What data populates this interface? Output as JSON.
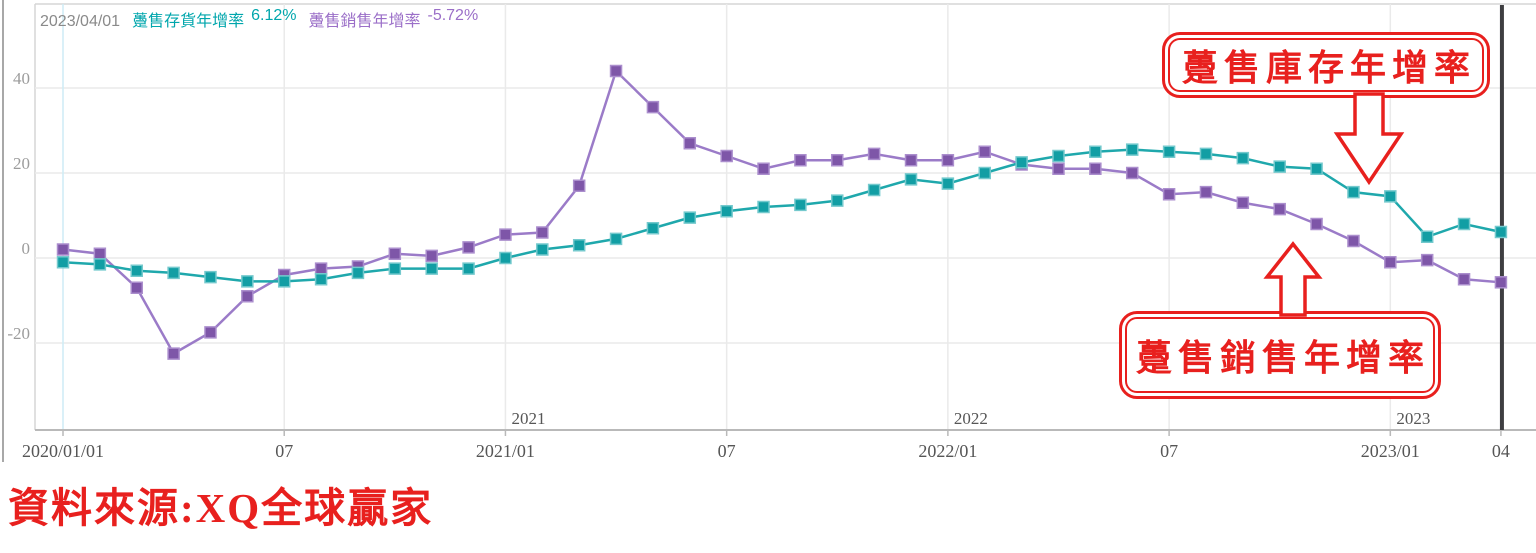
{
  "header": {
    "date": "2023/04/01",
    "inventory_label": "躉售存貨年增率",
    "inventory_value": "6.12%",
    "sales_label": "躉售銷售年增率",
    "sales_value": "-5.72%"
  },
  "annotations": {
    "inventory_box_label": "躉售庫存年增率",
    "sales_box_label": "躉售銷售年增率"
  },
  "source_text": "資料來源:XQ全球贏家",
  "colors": {
    "inventory_marker": "#129ea4",
    "inventory_marker_edge": "#74c9cd",
    "inventory_line": "#1fa8ac",
    "sales_marker": "#7e56a8",
    "sales_marker_edge": "#ab8ecd",
    "sales_line": "#9b7bc8",
    "annotation_red": "#e8201e",
    "grid": "#eaeaea",
    "first_grid": "#cdecf5",
    "axis": "#b9b9b9",
    "border": "#d6d6d6",
    "cursor": "#3e3e41",
    "y_label": "#9c9c9c",
    "x_label": "#565656",
    "header_date": "#8a8a8a",
    "header_inventory": "#00a6ac",
    "header_sales": "#9b6fc8"
  },
  "chart_data": {
    "type": "line",
    "title": "",
    "x_unit": "month",
    "months": [
      "2020/01",
      "2020/02",
      "2020/03",
      "2020/04",
      "2020/05",
      "2020/06",
      "2020/07",
      "2020/08",
      "2020/09",
      "2020/10",
      "2020/11",
      "2020/12",
      "2021/01",
      "2021/02",
      "2021/03",
      "2021/04",
      "2021/05",
      "2021/06",
      "2021/07",
      "2021/08",
      "2021/09",
      "2021/10",
      "2021/11",
      "2021/12",
      "2022/01",
      "2022/02",
      "2022/03",
      "2022/04",
      "2022/05",
      "2022/06",
      "2022/07",
      "2022/08",
      "2022/09",
      "2022/10",
      "2022/11",
      "2022/12",
      "2023/01",
      "2023/02",
      "2023/03",
      "2023/04"
    ],
    "series": [
      {
        "name": "躉售存貨年增率",
        "values": [
          -1,
          -1.5,
          -3,
          -3.5,
          -4.5,
          -5.5,
          -5.5,
          -5,
          -3.5,
          -2.5,
          -2.5,
          -2.5,
          0,
          2,
          3,
          4.5,
          7,
          9.5,
          11,
          12,
          12.5,
          13.5,
          16,
          18.5,
          17.5,
          20,
          22.5,
          24,
          25,
          25.5,
          25,
          24.5,
          23.5,
          21.5,
          21,
          15.5,
          14.5,
          5,
          8,
          6.12
        ]
      },
      {
        "name": "躉售銷售年增率",
        "values": [
          2,
          1,
          -7,
          -22.5,
          -17.5,
          -9,
          -4,
          -2.5,
          -2,
          1,
          0.5,
          2.5,
          5.5,
          6,
          17,
          44,
          35.5,
          27,
          24,
          21,
          23,
          23,
          24.5,
          23,
          23,
          25,
          22,
          21,
          21,
          20,
          15,
          15.5,
          13,
          11.5,
          8,
          4,
          -1,
          -0.5,
          -5,
          -5.72
        ]
      }
    ],
    "y_ticks": [
      40,
      20,
      0,
      -20
    ],
    "ylim": [
      -28,
      59
    ],
    "grid": true,
    "x_ticks": [
      {
        "label": "2020/01/01",
        "index": 0
      },
      {
        "label": "07",
        "index": 6
      },
      {
        "label": "2021/01",
        "index": 12
      },
      {
        "label": "07",
        "index": 18
      },
      {
        "label": "2022/01",
        "index": 24
      },
      {
        "label": "07",
        "index": 30
      },
      {
        "label": "2023/01",
        "index": 36
      },
      {
        "label": "04",
        "index": 39
      }
    ],
    "year_labels": [
      {
        "label": "2021",
        "index": 12
      },
      {
        "label": "2022",
        "index": 24
      },
      {
        "label": "2023",
        "index": 36
      }
    ],
    "grid_indices": [
      0,
      6,
      12,
      18,
      24,
      30,
      36
    ],
    "cursor_index": 39
  }
}
